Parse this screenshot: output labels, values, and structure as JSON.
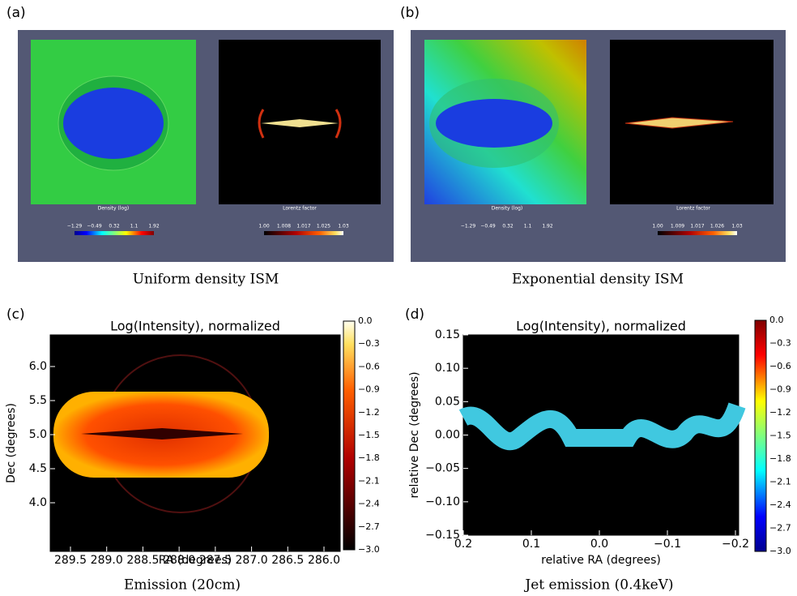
{
  "panels": [
    {
      "label": "(a)",
      "caption": "Uniform density ISM",
      "maps": [
        {
          "title": "Density (log)",
          "colorbar_ticks": [
            "−1.29",
            "−0.49",
            "0.32",
            "1.1",
            "1.92"
          ]
        },
        {
          "title": "Lorentz factor",
          "colorbar_ticks": [
            "1.00",
            "1.008",
            "1.017",
            "1.025",
            "1.03"
          ]
        }
      ]
    },
    {
      "label": "(b)",
      "caption": "Exponential density ISM",
      "maps": [
        {
          "title": "Density (log)",
          "colorbar_ticks": [
            "−1.29",
            "−0.49",
            "0.32",
            "1.1",
            "1.92"
          ]
        },
        {
          "title": "Lorentz factor",
          "colorbar_ticks": [
            "1.00",
            "1.009",
            "1.017",
            "1.026",
            "1.03"
          ]
        }
      ]
    },
    {
      "label": "(c)",
      "caption": "Emission (20cm)",
      "title": "Log(Intensity), normalized",
      "xlabel": "RA (degrees)",
      "ylabel": "Dec (degrees)",
      "xticks": [
        "289.5",
        "289.0",
        "288.5",
        "288.0",
        "287.5",
        "287.0",
        "286.5",
        "286.0"
      ],
      "yticks": [
        "6.0",
        "5.5",
        "5.0",
        "4.5",
        "4.0"
      ],
      "colorbar_ticks": [
        "0.0",
        "−0.3",
        "−0.6",
        "−0.9",
        "−1.2",
        "−1.5",
        "−1.8",
        "−2.1",
        "−2.4",
        "−2.7",
        "−3.0"
      ]
    },
    {
      "label": "(d)",
      "caption": "Jet emission (0.4keV)",
      "title": "Log(Intensity), normalized",
      "xlabel": "relative RA (degrees)",
      "ylabel": "relative Dec (degrees)",
      "xticks": [
        "0.2",
        "0.1",
        "0.0",
        "−0.1",
        "−0.2"
      ],
      "yticks": [
        "0.15",
        "0.10",
        "0.05",
        "0.00",
        "−0.05",
        "−0.10",
        "−0.15"
      ],
      "colorbar_ticks": [
        "0.0",
        "−0.3",
        "−0.6",
        "−0.9",
        "−1.2",
        "−1.5",
        "−1.8",
        "−2.1",
        "−2.4",
        "−2.7",
        "−3.0"
      ]
    }
  ]
}
